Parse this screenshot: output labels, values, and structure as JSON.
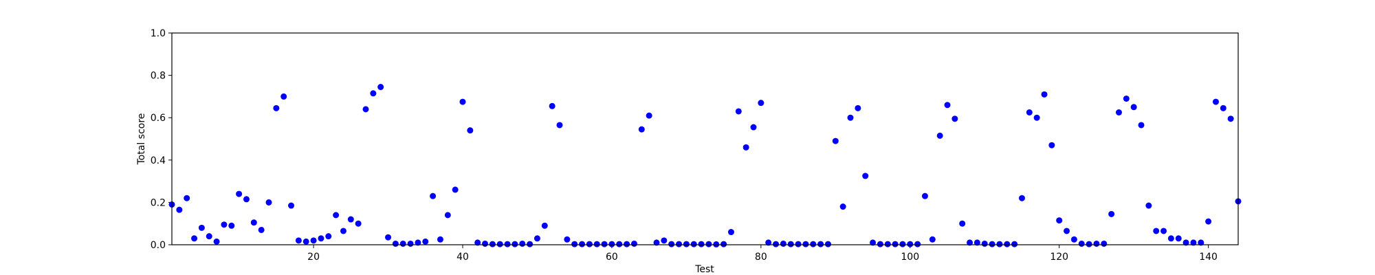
{
  "chart_data": {
    "type": "scatter",
    "xlabel": "Test",
    "ylabel": "Total score",
    "xlim": [
      1,
      144
    ],
    "ylim": [
      0.0,
      1.0
    ],
    "xticks": [
      20,
      40,
      60,
      80,
      100,
      120,
      140
    ],
    "yticks": [
      0.0,
      0.2,
      0.4,
      0.6,
      0.8,
      1.0
    ],
    "ytick_labels": [
      "0.0",
      "0.2",
      "0.4",
      "0.6",
      "0.8",
      "1.0"
    ],
    "grid": false,
    "marker_color": "#0000ff",
    "points": [
      [
        1,
        0.19
      ],
      [
        2,
        0.165
      ],
      [
        3,
        0.22
      ],
      [
        4,
        0.03
      ],
      [
        5,
        0.08
      ],
      [
        6,
        0.04
      ],
      [
        7,
        0.015
      ],
      [
        8,
        0.095
      ],
      [
        9,
        0.09
      ],
      [
        10,
        0.24
      ],
      [
        11,
        0.215
      ],
      [
        12,
        0.105
      ],
      [
        13,
        0.07
      ],
      [
        14,
        0.2
      ],
      [
        15,
        0.645
      ],
      [
        16,
        0.7
      ],
      [
        17,
        0.185
      ],
      [
        18,
        0.02
      ],
      [
        19,
        0.015
      ],
      [
        20,
        0.02
      ],
      [
        21,
        0.03
      ],
      [
        22,
        0.04
      ],
      [
        23,
        0.14
      ],
      [
        24,
        0.065
      ],
      [
        25,
        0.12
      ],
      [
        26,
        0.1
      ],
      [
        27,
        0.64
      ],
      [
        28,
        0.715
      ],
      [
        29,
        0.745
      ],
      [
        30,
        0.035
      ],
      [
        31,
        0.005
      ],
      [
        32,
        0.005
      ],
      [
        33,
        0.005
      ],
      [
        34,
        0.01
      ],
      [
        35,
        0.015
      ],
      [
        36,
        0.23
      ],
      [
        37,
        0.025
      ],
      [
        38,
        0.14
      ],
      [
        39,
        0.26
      ],
      [
        40,
        0.675
      ],
      [
        41,
        0.54
      ],
      [
        42,
        0.01
      ],
      [
        43,
        0.005
      ],
      [
        44,
        0.003
      ],
      [
        45,
        0.003
      ],
      [
        46,
        0.003
      ],
      [
        47,
        0.003
      ],
      [
        48,
        0.005
      ],
      [
        49,
        0.003
      ],
      [
        50,
        0.03
      ],
      [
        51,
        0.09
      ],
      [
        52,
        0.655
      ],
      [
        53,
        0.565
      ],
      [
        54,
        0.025
      ],
      [
        55,
        0.003
      ],
      [
        56,
        0.003
      ],
      [
        57,
        0.003
      ],
      [
        58,
        0.003
      ],
      [
        59,
        0.003
      ],
      [
        60,
        0.003
      ],
      [
        61,
        0.003
      ],
      [
        62,
        0.003
      ],
      [
        63,
        0.005
      ],
      [
        64,
        0.545
      ],
      [
        65,
        0.61
      ],
      [
        66,
        0.01
      ],
      [
        67,
        0.02
      ],
      [
        68,
        0.003
      ],
      [
        69,
        0.003
      ],
      [
        70,
        0.003
      ],
      [
        71,
        0.003
      ],
      [
        72,
        0.003
      ],
      [
        73,
        0.003
      ],
      [
        74,
        0.002
      ],
      [
        75,
        0.003
      ],
      [
        76,
        0.06
      ],
      [
        77,
        0.63
      ],
      [
        78,
        0.46
      ],
      [
        79,
        0.555
      ],
      [
        80,
        0.67
      ],
      [
        81,
        0.01
      ],
      [
        82,
        0.003
      ],
      [
        83,
        0.005
      ],
      [
        84,
        0.003
      ],
      [
        85,
        0.003
      ],
      [
        86,
        0.003
      ],
      [
        87,
        0.003
      ],
      [
        88,
        0.003
      ],
      [
        89,
        0.003
      ],
      [
        90,
        0.49
      ],
      [
        91,
        0.18
      ],
      [
        92,
        0.6
      ],
      [
        93,
        0.645
      ],
      [
        94,
        0.325
      ],
      [
        95,
        0.01
      ],
      [
        96,
        0.003
      ],
      [
        97,
        0.003
      ],
      [
        98,
        0.003
      ],
      [
        99,
        0.003
      ],
      [
        100,
        0.003
      ],
      [
        101,
        0.003
      ],
      [
        102,
        0.23
      ],
      [
        103,
        0.025
      ],
      [
        104,
        0.515
      ],
      [
        105,
        0.66
      ],
      [
        106,
        0.595
      ],
      [
        107,
        0.1
      ],
      [
        108,
        0.01
      ],
      [
        109,
        0.01
      ],
      [
        110,
        0.005
      ],
      [
        111,
        0.003
      ],
      [
        112,
        0.003
      ],
      [
        113,
        0.003
      ],
      [
        114,
        0.003
      ],
      [
        115,
        0.22
      ],
      [
        116,
        0.625
      ],
      [
        117,
        0.6
      ],
      [
        118,
        0.71
      ],
      [
        119,
        0.47
      ],
      [
        120,
        0.115
      ],
      [
        121,
        0.065
      ],
      [
        122,
        0.025
      ],
      [
        123,
        0.005
      ],
      [
        124,
        0.003
      ],
      [
        125,
        0.005
      ],
      [
        126,
        0.005
      ],
      [
        127,
        0.145
      ],
      [
        128,
        0.625
      ],
      [
        129,
        0.69
      ],
      [
        130,
        0.65
      ],
      [
        131,
        0.565
      ],
      [
        132,
        0.185
      ],
      [
        133,
        0.065
      ],
      [
        134,
        0.065
      ],
      [
        135,
        0.03
      ],
      [
        136,
        0.03
      ],
      [
        137,
        0.01
      ],
      [
        138,
        0.01
      ],
      [
        139,
        0.01
      ],
      [
        140,
        0.11
      ],
      [
        141,
        0.675
      ],
      [
        142,
        0.645
      ],
      [
        143,
        0.595
      ],
      [
        144,
        0.205
      ]
    ]
  }
}
